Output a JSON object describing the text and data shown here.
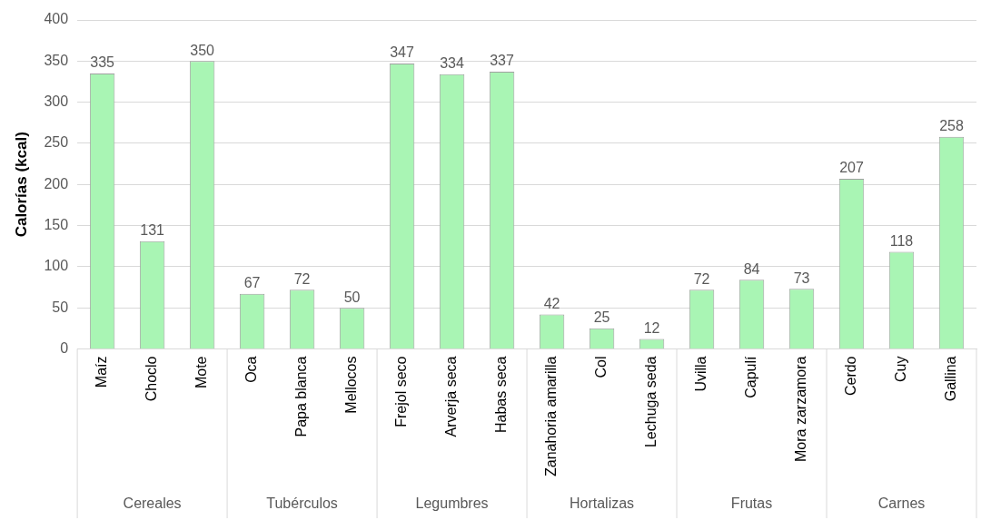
{
  "chart_data": {
    "type": "bar",
    "ylabel": "Calorías (kcal)",
    "categories": [
      "Maíz",
      "Choclo",
      "Mote",
      "Oca",
      "Papa blanca",
      "Mellocos",
      "Frejol seco",
      "Arverja seca",
      "Habas seca",
      "Zanahoria amarilla",
      "Col",
      "Lechuga seda",
      "Uvilla",
      "Capulí",
      "Mora zarzamora",
      "Cerdo",
      "Cuy",
      "Gallina"
    ],
    "values": [
      335,
      131,
      350,
      67,
      72,
      50,
      347,
      334,
      337,
      42,
      25,
      12,
      72,
      84,
      73,
      207,
      118,
      258
    ],
    "color": "#a9f5b4",
    "ylim": [
      0,
      400
    ],
    "yticks": [
      0,
      50,
      100,
      150,
      200,
      250,
      300,
      350,
      400
    ],
    "grid": "y",
    "data_labels": true,
    "annotations": [
      "Cereales",
      "Tubérculos",
      "Legumbres",
      "Hortalizas",
      "Frutas",
      "Carnes"
    ]
  }
}
